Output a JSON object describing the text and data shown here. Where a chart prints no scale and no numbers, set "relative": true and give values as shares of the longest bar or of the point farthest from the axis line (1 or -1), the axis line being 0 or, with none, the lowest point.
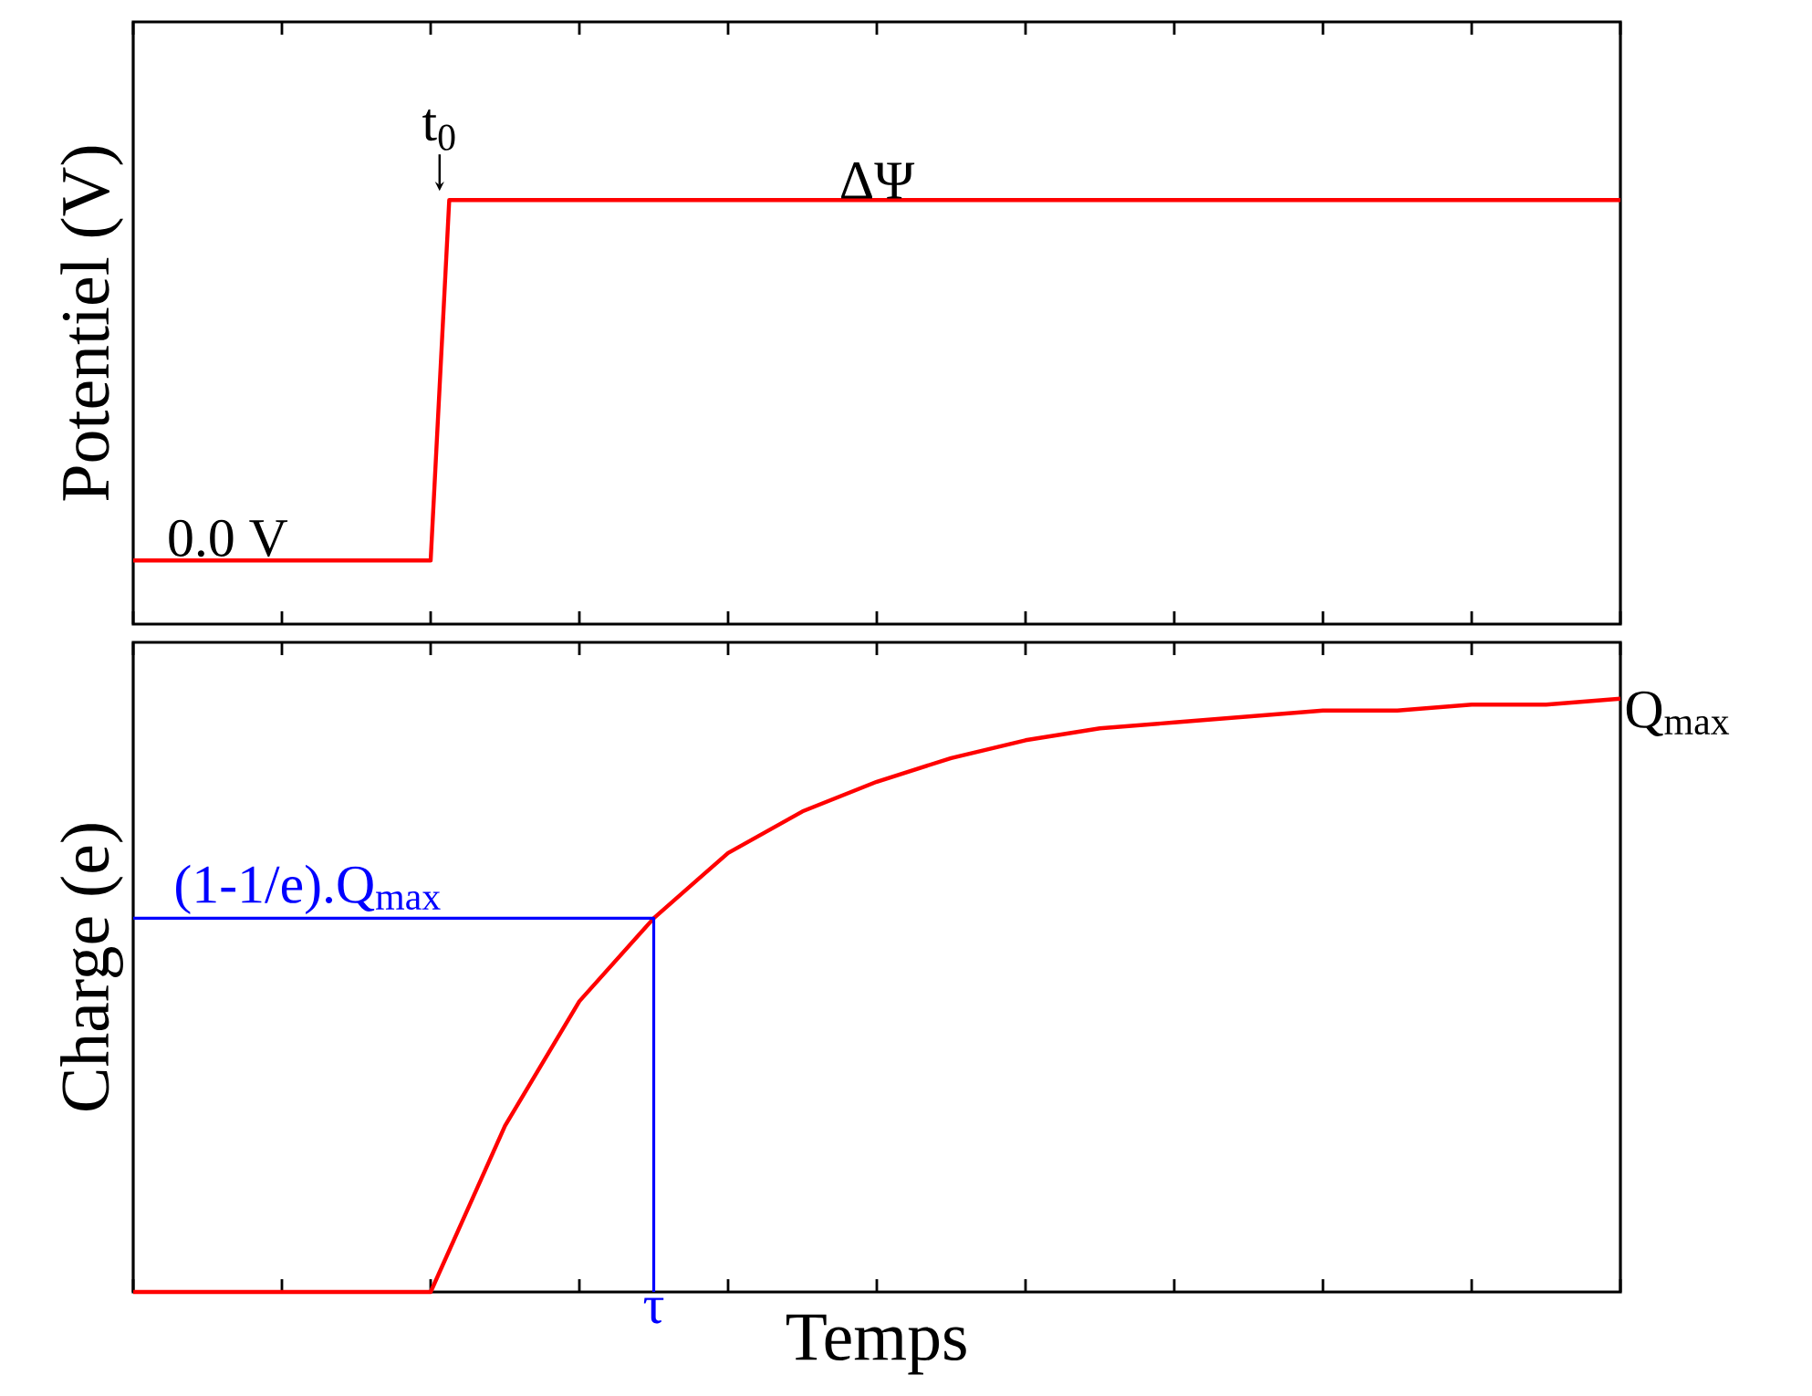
{
  "chart_data": [
    {
      "type": "line",
      "ylabel": "Potentiel (V)",
      "relative": true,
      "categories": [
        null,
        null,
        null,
        null,
        null,
        null,
        null,
        null,
        null,
        null,
        null,
        null,
        null,
        null,
        null,
        null,
        null,
        null,
        null,
        null,
        null,
        null,
        null,
        null,
        null,
        null,
        null,
        null,
        null,
        null,
        null,
        null,
        null,
        null,
        null,
        null,
        null,
        null,
        null,
        null,
        null,
        null,
        null,
        null,
        null,
        null,
        null,
        null,
        null,
        null,
        null,
        null,
        null,
        null,
        null,
        null,
        null,
        null,
        null,
        null,
        null,
        null,
        null,
        null,
        null,
        null,
        null,
        null,
        null,
        null,
        null,
        null,
        null,
        null,
        null,
        null,
        null,
        null,
        null,
        null,
        null
      ],
      "series": [
        {
          "color": "#ff0000",
          "values": [
            0.15,
            0.15,
            0.15,
            0.15,
            0.15,
            0.15,
            0.15,
            0.15,
            0.15,
            0.15,
            0.15,
            0.15,
            0.15,
            0.15,
            0.15,
            0.15,
            0.15,
            1,
            1,
            1,
            1,
            1,
            1,
            1,
            1,
            1,
            1,
            1,
            1,
            1,
            1,
            1,
            1,
            1,
            1,
            1,
            1,
            1,
            1,
            1,
            1,
            1,
            1,
            1,
            1,
            1,
            1,
            1,
            1,
            1,
            1,
            1,
            1,
            1,
            1,
            1,
            1,
            1,
            1,
            1,
            1,
            1,
            1,
            1,
            1,
            1,
            1,
            1,
            1,
            1,
            1,
            1,
            1,
            1,
            1,
            1,
            1,
            1,
            1,
            1,
            1
          ]
        }
      ],
      "annotations": [
        "0.0 V",
        "t$_{0}$",
        "ΔΨ"
      ]
    },
    {
      "type": "line",
      "xlabel": "Temps",
      "ylabel": "Charge (e)",
      "relative": true,
      "categories": [
        null,
        null,
        null,
        null,
        null,
        null,
        null,
        null,
        null,
        null,
        null,
        null,
        null,
        null,
        null,
        null,
        null,
        null,
        null,
        null,
        null
      ],
      "series": [
        {
          "color": "#ff0000",
          "values": [
            0,
            0,
            0,
            0,
            0,
            0.28,
            0.49,
            0.63,
            0.74,
            0.81,
            0.86,
            0.9,
            0.93,
            0.95,
            0.96,
            0.97,
            0.98,
            0.98,
            0.99,
            0.99,
            1
          ]
        }
      ],
      "ref_lines": [
        {
          "axis": "y",
          "value": 0.63,
          "label": "(1-1/e).Q$_{max}$",
          "color": "#0000ff"
        }
      ],
      "annotations": [
        "τ",
        "Q$_{max}$"
      ]
    }
  ]
}
